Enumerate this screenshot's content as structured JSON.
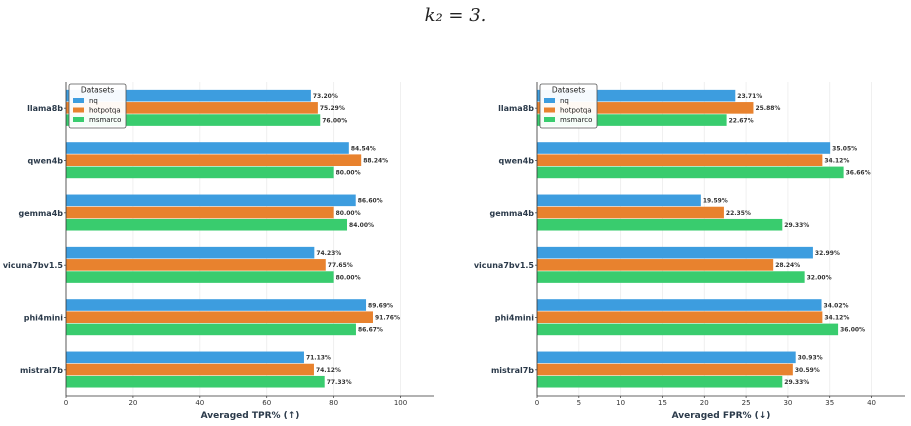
{
  "caption": "k₂ = 3.",
  "colors": {
    "nq": "#3d9ddf",
    "hotpotqa": "#e8822e",
    "msmarco": "#39cc6e"
  },
  "chart_data": [
    {
      "type": "bar",
      "orientation": "horizontal",
      "categories": [
        "llama8b",
        "qwen4b",
        "gemma4b",
        "vicuna7bv1.5",
        "phi4mini",
        "mistral7b"
      ],
      "series": [
        {
          "name": "nq",
          "values": [
            73.2,
            84.54,
            86.6,
            74.23,
            89.69,
            71.13
          ]
        },
        {
          "name": "hotpotqa",
          "values": [
            75.29,
            88.24,
            80.0,
            77.65,
            91.76,
            74.12
          ]
        },
        {
          "name": "msmarco",
          "values": [
            76.0,
            80.0,
            84.0,
            80.0,
            86.67,
            77.33
          ]
        }
      ],
      "data_labels": [
        [
          "73.20%",
          "84.54%",
          "86.60%",
          "74.23%",
          "89.69%",
          "71.13%"
        ],
        [
          "75.29%",
          "88.24%",
          "80.00%",
          "77.65%",
          "91.76%",
          "74.12%"
        ],
        [
          "76.00%",
          "80.00%",
          "84.00%",
          "80.00%",
          "86.67%",
          "77.33%"
        ]
      ],
      "xlabel": "Averaged TPR% (↑)",
      "xlim": [
        0,
        110
      ],
      "xticks": [
        0,
        20,
        40,
        60,
        80,
        100
      ],
      "legend_title": "Datasets",
      "legend_position": "top-left",
      "grid": true
    },
    {
      "type": "bar",
      "orientation": "horizontal",
      "categories": [
        "llama8b",
        "qwen4b",
        "gemma4b",
        "vicuna7bv1.5",
        "phi4mini",
        "mistral7b"
      ],
      "series": [
        {
          "name": "nq",
          "values": [
            23.71,
            35.05,
            19.59,
            32.99,
            34.02,
            30.93
          ]
        },
        {
          "name": "hotpotqa",
          "values": [
            25.88,
            34.12,
            22.35,
            28.24,
            34.12,
            30.59
          ]
        },
        {
          "name": "msmarco",
          "values": [
            22.67,
            36.66,
            29.33,
            32.0,
            36.0,
            29.33
          ]
        }
      ],
      "data_labels": [
        [
          "23.71%",
          "35.05%",
          "19.59%",
          "32.99%",
          "34.02%",
          "30.93%"
        ],
        [
          "25.88%",
          "34.12%",
          "22.35%",
          "28.24%",
          "34.12%",
          "30.59%"
        ],
        [
          "22.67%",
          "36.66%",
          "29.33%",
          "32.00%",
          "36.00%",
          "29.33%"
        ]
      ],
      "xlabel": "Averaged FPR% (↓)",
      "xlim": [
        0,
        44
      ],
      "xticks": [
        0,
        5,
        10,
        15,
        20,
        25,
        30,
        35,
        40
      ],
      "legend_title": "Datasets",
      "legend_position": "top-left",
      "grid": true
    }
  ]
}
